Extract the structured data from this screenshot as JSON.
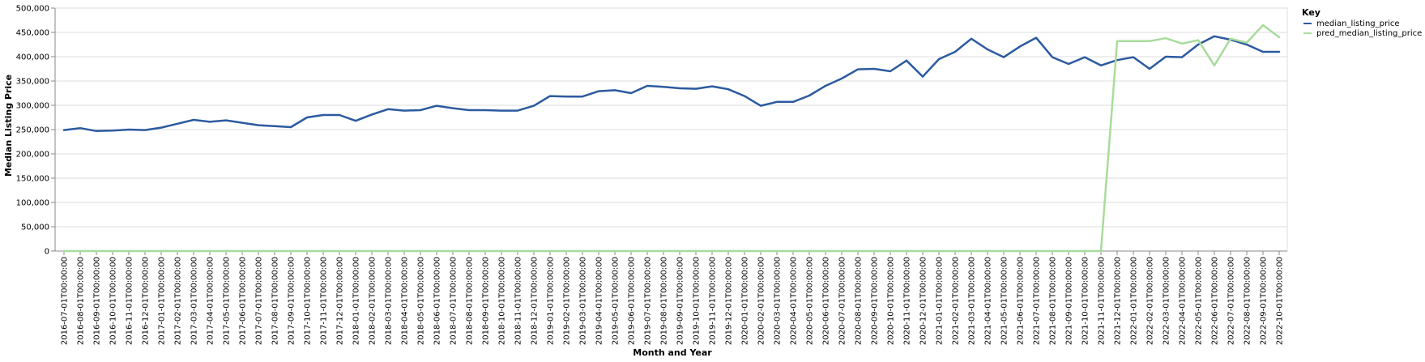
{
  "chart_data": {
    "type": "line",
    "xlabel": "Month and Year",
    "ylabel": "Median Listing Price",
    "ylim": [
      0,
      500000
    ],
    "y_ticks": [
      0,
      50000,
      100000,
      150000,
      200000,
      250000,
      300000,
      350000,
      400000,
      450000,
      500000
    ],
    "y_tick_labels": [
      "0",
      "50,000",
      "100,000",
      "150,000",
      "200,000",
      "250,000",
      "300,000",
      "350,000",
      "400,000",
      "450,000",
      "500,000"
    ],
    "grid": true,
    "legend": {
      "title": "Key",
      "placement": "top-right"
    },
    "x": [
      "2016-07-01T00:00:00",
      "2016-08-01T00:00:00",
      "2016-09-01T00:00:00",
      "2016-10-01T00:00:00",
      "2016-11-01T00:00:00",
      "2016-12-01T00:00:00",
      "2017-01-01T00:00:00",
      "2017-02-01T00:00:00",
      "2017-03-01T00:00:00",
      "2017-04-01T00:00:00",
      "2017-05-01T00:00:00",
      "2017-06-01T00:00:00",
      "2017-07-01T00:00:00",
      "2017-08-01T00:00:00",
      "2017-09-01T00:00:00",
      "2017-10-01T00:00:00",
      "2017-11-01T00:00:00",
      "2017-12-01T00:00:00",
      "2018-01-01T00:00:00",
      "2018-02-01T00:00:00",
      "2018-03-01T00:00:00",
      "2018-04-01T00:00:00",
      "2018-05-01T00:00:00",
      "2018-06-01T00:00:00",
      "2018-07-01T00:00:00",
      "2018-08-01T00:00:00",
      "2018-09-01T00:00:00",
      "2018-10-01T00:00:00",
      "2018-11-01T00:00:00",
      "2018-12-01T00:00:00",
      "2019-01-01T00:00:00",
      "2019-02-01T00:00:00",
      "2019-03-01T00:00:00",
      "2019-04-01T00:00:00",
      "2019-05-01T00:00:00",
      "2019-06-01T00:00:00",
      "2019-07-01T00:00:00",
      "2019-08-01T00:00:00",
      "2019-09-01T00:00:00",
      "2019-10-01T00:00:00",
      "2019-11-01T00:00:00",
      "2019-12-01T00:00:00",
      "2020-01-01T00:00:00",
      "2020-02-01T00:00:00",
      "2020-03-01T00:00:00",
      "2020-04-01T00:00:00",
      "2020-05-01T00:00:00",
      "2020-06-01T00:00:00",
      "2020-07-01T00:00:00",
      "2020-08-01T00:00:00",
      "2020-09-01T00:00:00",
      "2020-10-01T00:00:00",
      "2020-11-01T00:00:00",
      "2020-12-01T00:00:00",
      "2021-01-01T00:00:00",
      "2021-02-01T00:00:00",
      "2021-03-01T00:00:00",
      "2021-04-01T00:00:00",
      "2021-05-01T00:00:00",
      "2021-06-01T00:00:00",
      "2021-07-01T00:00:00",
      "2021-08-01T00:00:00",
      "2021-09-01T00:00:00",
      "2021-10-01T00:00:00",
      "2021-11-01T00:00:00",
      "2021-12-01T00:00:00",
      "2022-01-01T00:00:00",
      "2022-02-01T00:00:00",
      "2022-03-01T00:00:00",
      "2022-04-01T00:00:00",
      "2022-05-01T00:00:00",
      "2022-06-01T00:00:00",
      "2022-07-01T00:00:00",
      "2022-08-01T00:00:00",
      "2022-09-01T00:00:00",
      "2022-10-01T00:00:00"
    ],
    "series": [
      {
        "name": "median_listing_price",
        "color": "#2c5aa0",
        "values": [
          249000,
          253000,
          247000,
          248000,
          250000,
          249000,
          254000,
          262000,
          270000,
          266000,
          269000,
          264000,
          259000,
          257000,
          255000,
          275000,
          280000,
          280000,
          268000,
          281000,
          292000,
          289000,
          290000,
          299000,
          294000,
          290000,
          290000,
          289000,
          289000,
          299000,
          319000,
          318000,
          318000,
          329000,
          331000,
          325000,
          340000,
          338000,
          335000,
          334000,
          339000,
          333000,
          319000,
          299000,
          307000,
          307000,
          320000,
          340000,
          355000,
          374000,
          375000,
          370000,
          392000,
          359000,
          395000,
          410000,
          437000,
          415000,
          399000,
          421000,
          439000,
          399000,
          385000,
          399000,
          382000,
          393000,
          399000,
          375000,
          400000,
          399000,
          425000,
          442000,
          435000,
          425000,
          410000,
          410000
        ]
      },
      {
        "name": "pred_median_listing_price",
        "color": "#a8dc9c",
        "values": [
          0,
          0,
          0,
          0,
          0,
          0,
          0,
          0,
          0,
          0,
          0,
          0,
          0,
          0,
          0,
          0,
          0,
          0,
          0,
          0,
          0,
          0,
          0,
          0,
          0,
          0,
          0,
          0,
          0,
          0,
          0,
          0,
          0,
          0,
          0,
          0,
          0,
          0,
          0,
          0,
          0,
          0,
          0,
          0,
          0,
          0,
          0,
          0,
          0,
          0,
          0,
          0,
          0,
          0,
          0,
          0,
          0,
          0,
          0,
          0,
          0,
          0,
          0,
          0,
          0,
          432000,
          432000,
          432000,
          438000,
          427000,
          434000,
          382000,
          437000,
          429000,
          465000,
          440000
        ]
      }
    ]
  }
}
